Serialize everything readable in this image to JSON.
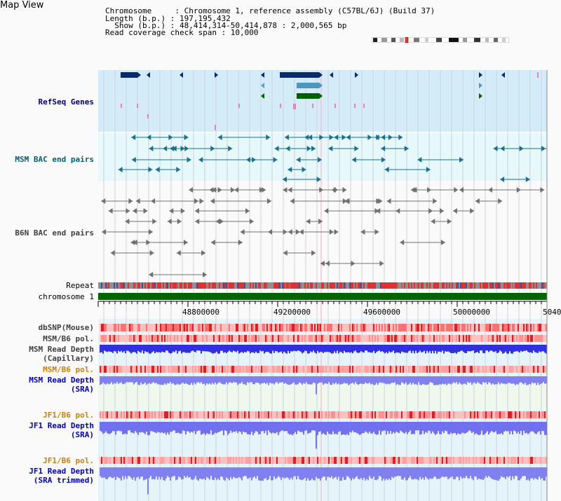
{
  "header": {
    "title": "Map View",
    "chromosome_line": "Chromosome     : Chromosome 1, reference assembly (C57BL/6J) (Build 37)",
    "length_line": "Length (b.p.) : 197,195,432",
    "show_line": "  Show (b.p.) : 48,414,314-50,414,878 : 2,000,565 bp",
    "coverage_line": "Read coverage check span : 10,000"
  },
  "tracks": {
    "refseq": "RefSeq Genes",
    "msm_bac": "MSM BAC end pairs",
    "b6n_bac": "B6N BAC end pairs",
    "repeat": "Repeat",
    "chromosome": "chromosome 1",
    "dbsnp": "dbSNP(Mouse)",
    "msm_b6_pol_1": "MSM/B6 pol.",
    "msm_read_depth_cap_1": "MSM Read Depth",
    "msm_read_depth_cap_2": "(Capillary)",
    "msm_b6_pol_2": "MSM/B6 pol.",
    "msm_read_depth_sra_1": "MSM Read Depth",
    "msm_read_depth_sra_2": "(SRA)",
    "jf1_b6_pol_1": "JF1/B6 pol.",
    "jf1_read_depth_sra_1": "JF1 Read Depth",
    "jf1_read_depth_sra_2": "(SRA)",
    "jf1_b6_pol_2": "JF1/B6 pol.",
    "jf1_read_depth_trim_1": "JF1 Read Depth",
    "jf1_read_depth_trim_2": "(SRA trimmed)"
  },
  "scale": {
    "ticks": [
      "48800000",
      "49200000",
      "49600000",
      "50000000",
      "5040"
    ]
  },
  "colors": {
    "refseq_bg": "#d4ecf8",
    "bac_bg": "#e6f8fa",
    "navy_gene": "#0a2a6a",
    "green_gene": "#006000",
    "chromosome_bar": "#006600",
    "depth_blue": "#3030e0",
    "depth_light": "#8080f0",
    "pol_red": "#ff8080"
  }
}
